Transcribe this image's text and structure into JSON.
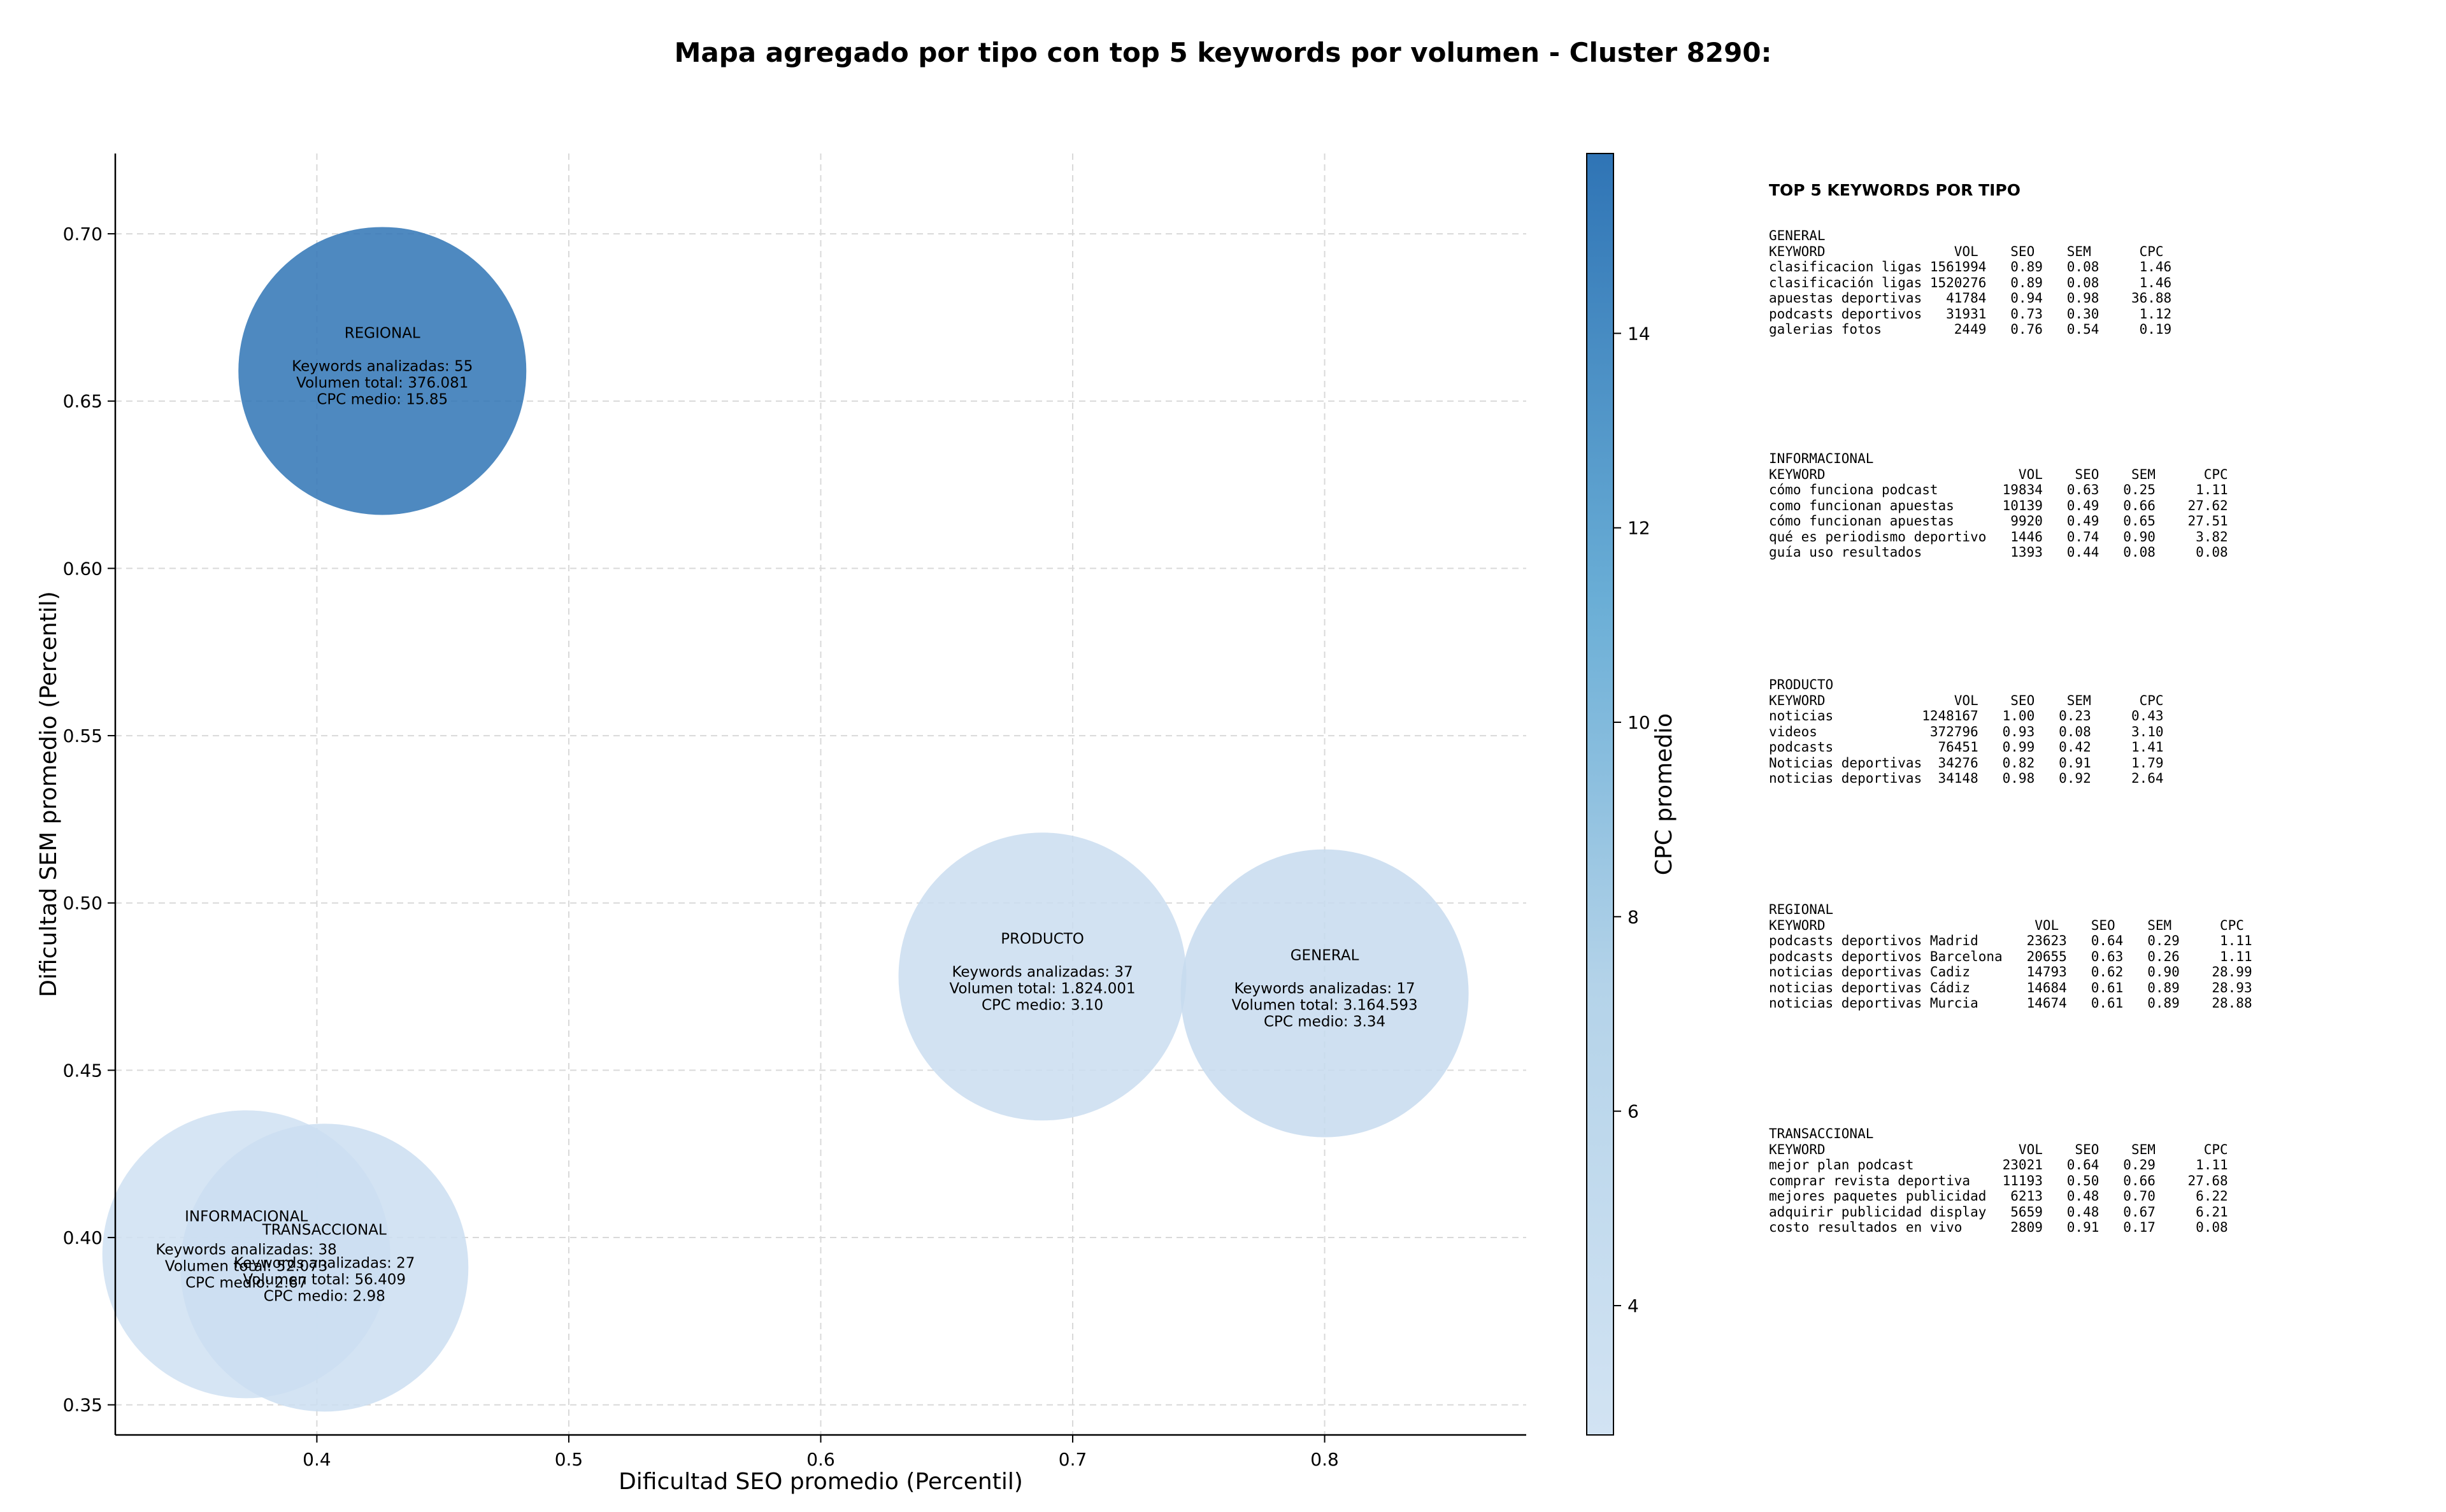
{
  "title": "Mapa agregado por tipo con top 5 keywords por volumen - Cluster 8290:",
  "chart_data": {
    "type": "scatter",
    "xlabel": "Dificultad SEO promedio (Percentil)",
    "ylabel": "Dificultad SEM promedio (Percentil)",
    "xlim": [
      0.32,
      0.88
    ],
    "ylim": [
      0.341,
      0.724
    ],
    "xticks": [
      "0.4",
      "0.5",
      "0.6",
      "0.7",
      "0.8"
    ],
    "yticks": [
      "0.35",
      "0.40",
      "0.45",
      "0.50",
      "0.55",
      "0.60",
      "0.65",
      "0.70"
    ],
    "grid": true,
    "colorbar": {
      "label": "CPC promedio",
      "min": 2.67,
      "max": 15.85,
      "ticks": [
        "4",
        "6",
        "8",
        "10",
        "12",
        "14"
      ],
      "color_low": "#cfe1f2",
      "color_high": "#2f74b5"
    },
    "points": [
      {
        "tipo": "REGIONAL",
        "x": 0.426,
        "y": 0.659,
        "keywords": 55,
        "volumen": "376.081",
        "cpc": 15.85,
        "line1": "Keywords analizadas: 55",
        "line2": "Volumen total: 376.081",
        "line3": "CPC medio: 15.85"
      },
      {
        "tipo": "PRODUCTO",
        "x": 0.688,
        "y": 0.478,
        "keywords": 37,
        "volumen": "1.824.001",
        "cpc": 3.1,
        "line1": "Keywords analizadas: 37",
        "line2": "Volumen total: 1.824.001",
        "line3": "CPC medio: 3.10"
      },
      {
        "tipo": "GENERAL",
        "x": 0.8,
        "y": 0.473,
        "keywords": 17,
        "volumen": "3.164.593",
        "cpc": 3.34,
        "line1": "Keywords analizadas: 17",
        "line2": "Volumen total: 3.164.593",
        "line3": "CPC medio: 3.34"
      },
      {
        "tipo": "INFORMACIONAL",
        "x": 0.372,
        "y": 0.395,
        "keywords": 38,
        "volumen": "52.073",
        "cpc": 2.67,
        "line1": "Keywords analizadas: 38",
        "line2": "Volumen total: 52.073",
        "line3": "CPC medio: 2.67"
      },
      {
        "tipo": "TRANSACCIONAL",
        "x": 0.403,
        "y": 0.391,
        "keywords": 27,
        "volumen": "56.409",
        "cpc": 2.98,
        "line1": "Keywords analizadas: 27",
        "line2": "Volumen total: 56.409",
        "line3": "CPC medio: 2.98"
      }
    ]
  },
  "tables": {
    "heading": "TOP 5 KEYWORDS POR TIPO",
    "blocks": [
      {
        "name": "GENERAL",
        "lines": [
          "GENERAL",
          "KEYWORD                VOL    SEO    SEM      CPC",
          "clasificacion ligas 1561994   0.89   0.08     1.46",
          "clasificación ligas 1520276   0.89   0.08     1.46",
          "apuestas deportivas   41784   0.94   0.98    36.88",
          "podcasts deportivos   31931   0.73   0.30     1.12",
          "galerias fotos         2449   0.76   0.54     0.19"
        ]
      },
      {
        "name": "INFORMACIONAL",
        "lines": [
          "INFORMACIONAL",
          "KEYWORD                        VOL    SEO    SEM      CPC",
          "cómo funciona podcast        19834   0.63   0.25     1.11",
          "como funcionan apuestas      10139   0.49   0.66    27.62",
          "cómo funcionan apuestas       9920   0.49   0.65    27.51",
          "qué es periodismo deportivo   1446   0.74   0.90     3.82",
          "guía uso resultados           1393   0.44   0.08     0.08"
        ]
      },
      {
        "name": "PRODUCTO",
        "lines": [
          "PRODUCTO",
          "KEYWORD                VOL    SEO    SEM      CPC",
          "noticias           1248167   1.00   0.23     0.43",
          "videos              372796   0.93   0.08     3.10",
          "podcasts             76451   0.99   0.42     1.41",
          "Noticias deportivas  34276   0.82   0.91     1.79",
          "noticias deportivas  34148   0.98   0.92     2.64"
        ]
      },
      {
        "name": "REGIONAL",
        "lines": [
          "REGIONAL",
          "KEYWORD                          VOL    SEO    SEM      CPC",
          "podcasts deportivos Madrid      23623   0.64   0.29     1.11",
          "podcasts deportivos Barcelona   20655   0.63   0.26     1.11",
          "noticias deportivas Cadiz       14793   0.62   0.90    28.99",
          "noticias deportivas Cádiz       14684   0.61   0.89    28.93",
          "noticias deportivas Murcia      14674   0.61   0.89    28.88"
        ]
      },
      {
        "name": "TRANSACCIONAL",
        "lines": [
          "TRANSACCIONAL",
          "KEYWORD                        VOL    SEO    SEM      CPC",
          "mejor plan podcast           23021   0.64   0.29     1.11",
          "comprar revista deportiva    11193   0.50   0.66    27.68",
          "mejores paquetes publicidad   6213   0.48   0.70     6.22",
          "adquirir publicidad display   5659   0.48   0.67     6.21",
          "costo resultados en vivo      2809   0.91   0.17     0.08"
        ]
      }
    ]
  }
}
